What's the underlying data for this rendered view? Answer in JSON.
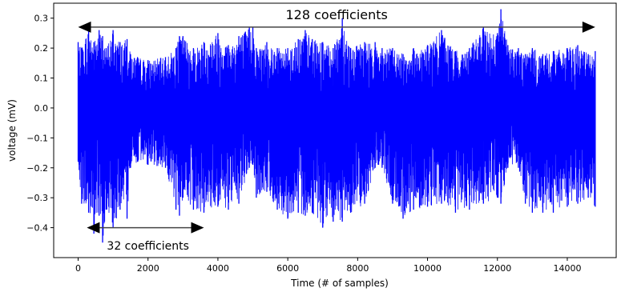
{
  "chart_data": {
    "type": "line",
    "title": "",
    "xlabel": "Time (# of samples)",
    "ylabel": "voltage (mV)",
    "xlim": [
      -700,
      15400
    ],
    "ylim": [
      -0.5,
      0.35
    ],
    "xticks": [
      0,
      2000,
      4000,
      6000,
      8000,
      10000,
      12000,
      14000
    ],
    "yticks": [
      -0.4,
      -0.3,
      -0.2,
      -0.1,
      0.0,
      0.1,
      0.2,
      0.3
    ],
    "xtick_labels": [
      "0",
      "2000",
      "4000",
      "6000",
      "8000",
      "10000",
      "12000",
      "14000"
    ],
    "ytick_labels": [
      "−0.4",
      "−0.3",
      "−0.2",
      "−0.1",
      "0.0",
      "0.1",
      "0.2",
      "0.3"
    ],
    "grid": false,
    "series": [
      {
        "color": "#0000ff",
        "n_samples": 14800,
        "envelope": {
          "x": [
            0,
            100,
            300,
            450,
            600,
            700,
            800,
            1000,
            1200,
            1400,
            1500,
            1700,
            2000,
            2500,
            2800,
            2900,
            3000,
            3300,
            3600,
            4000,
            4300,
            4600,
            4900,
            5000,
            5100,
            5400,
            5700,
            6000,
            6300,
            6500,
            6700,
            7000,
            7300,
            7560,
            7800,
            8200,
            8500,
            8600,
            8700,
            9000,
            9300,
            9600,
            10000,
            10400,
            10800,
            11200,
            11600,
            12000,
            12100,
            12300,
            12600,
            12800,
            13000,
            13300,
            13600,
            14000,
            14300,
            14600,
            14800
          ],
          "upper": [
            0.22,
            0.2,
            0.27,
            0.22,
            0.26,
            0.24,
            0.2,
            0.26,
            0.22,
            0.23,
            0.18,
            0.17,
            0.16,
            0.17,
            0.2,
            0.24,
            0.24,
            0.2,
            0.22,
            0.25,
            0.21,
            0.24,
            0.27,
            0.27,
            0.2,
            0.22,
            0.2,
            0.2,
            0.23,
            0.26,
            0.23,
            0.22,
            0.2,
            0.3,
            0.2,
            0.22,
            0.22,
            0.17,
            0.2,
            0.2,
            0.18,
            0.2,
            0.21,
            0.26,
            0.19,
            0.2,
            0.27,
            0.25,
            0.33,
            0.21,
            0.2,
            0.18,
            0.2,
            0.18,
            0.19,
            0.2,
            0.21,
            0.18,
            0.19
          ],
          "lower": [
            -0.18,
            -0.32,
            -0.35,
            -0.42,
            -0.36,
            -0.45,
            -0.34,
            -0.4,
            -0.34,
            -0.37,
            -0.2,
            -0.18,
            -0.19,
            -0.2,
            -0.34,
            -0.36,
            -0.3,
            -0.34,
            -0.35,
            -0.33,
            -0.34,
            -0.32,
            -0.2,
            -0.19,
            -0.3,
            -0.28,
            -0.34,
            -0.37,
            -0.35,
            -0.36,
            -0.35,
            -0.4,
            -0.38,
            -0.38,
            -0.35,
            -0.32,
            -0.2,
            -0.19,
            -0.2,
            -0.32,
            -0.37,
            -0.34,
            -0.33,
            -0.32,
            -0.35,
            -0.34,
            -0.32,
            -0.3,
            -0.32,
            -0.2,
            -0.2,
            -0.32,
            -0.35,
            -0.35,
            -0.35,
            -0.33,
            -0.32,
            -0.3,
            -0.33
          ]
        }
      }
    ],
    "annotations": [
      {
        "text": "128 coefficients",
        "x_from": 0,
        "x_to": 14800,
        "y": 0.27
      },
      {
        "text": "32 coefficients",
        "x_from": 250,
        "x_to": 3600,
        "y": -0.4
      }
    ]
  }
}
